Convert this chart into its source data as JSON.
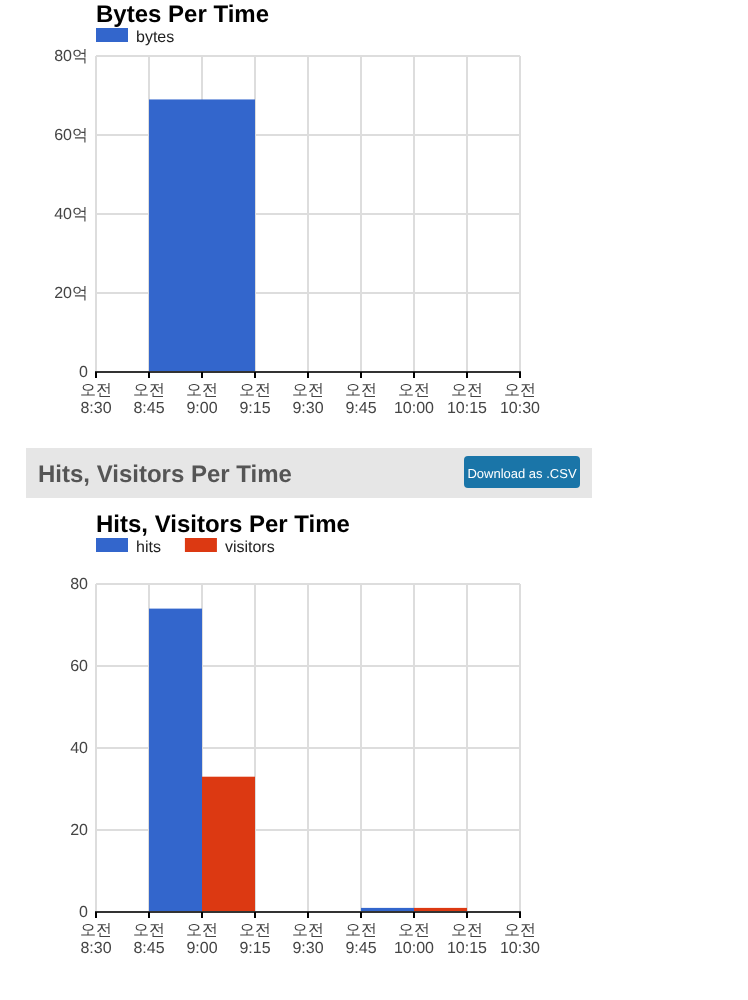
{
  "chart_data": [
    {
      "type": "bar",
      "title": "Bytes Per Time",
      "categories": [
        "오전 8:30",
        "오전 8:45",
        "오전 9:00",
        "오전 9:15",
        "오전 9:30",
        "오전 9:45",
        "오전 10:00",
        "오전 10:15",
        "오전 10:30"
      ],
      "series": [
        {
          "name": "bytes",
          "color": "#3366cc",
          "values": [
            null,
            null,
            69,
            null,
            null,
            null,
            null,
            null,
            null
          ]
        }
      ],
      "ylim": [
        0,
        80
      ],
      "yticks": [
        0,
        {
          "value": 20,
          "label": "20억"
        },
        {
          "value": 40,
          "label": "40억"
        },
        {
          "value": 60,
          "label": "60억"
        },
        {
          "value": 80,
          "label": "80억"
        }
      ],
      "grid": true,
      "legend": "top left"
    },
    {
      "type": "bar",
      "title": "Hits, Visitors Per Time",
      "categories": [
        "오전 8:30",
        "오전 8:45",
        "오전 9:00",
        "오전 9:15",
        "오전 9:30",
        "오전 9:45",
        "오전 10:00",
        "오전 10:15",
        "오전 10:30"
      ],
      "series": [
        {
          "name": "hits",
          "color": "#3366cc",
          "values": [
            null,
            null,
            74,
            null,
            null,
            null,
            1,
            null,
            null
          ]
        },
        {
          "name": "visitors",
          "color": "#dc3912",
          "values": [
            null,
            null,
            33,
            null,
            null,
            null,
            1,
            null,
            null
          ]
        }
      ],
      "ylim": [
        0,
        80
      ],
      "yticks": [
        0,
        20,
        40,
        60,
        80
      ],
      "grid": true,
      "legend": "top left",
      "annotations": [
        "Hits, Visitors Per Time",
        "Download as .CSV"
      ]
    }
  ]
}
